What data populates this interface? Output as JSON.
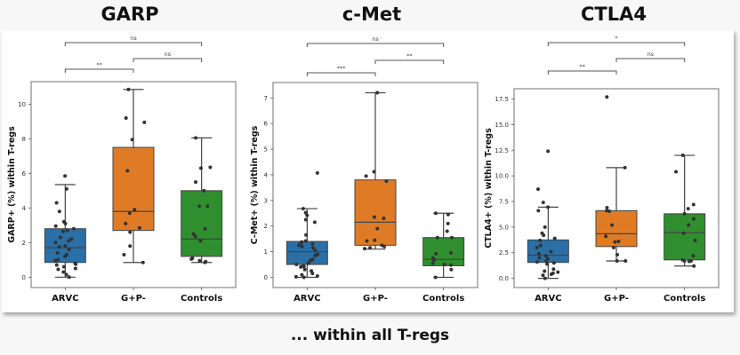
{
  "footer": "... within all T-regs",
  "chart_data": [
    {
      "type": "box",
      "title": "GARP",
      "xlabel": "",
      "ylabel": "GARP+ (%) within T-regs",
      "categories": [
        "ARVC",
        "G+P-",
        "Controls"
      ],
      "colors": [
        "#2a6fa6",
        "#e07b25",
        "#2f8f2f"
      ],
      "ylim": [
        -0.6,
        11.3
      ],
      "yticks": [
        0,
        2,
        4,
        6,
        8,
        10
      ],
      "ytick_labels": [
        "0",
        "2",
        "4",
        "6",
        "8",
        "10"
      ],
      "boxes": [
        {
          "whislo": 0.0,
          "q1": 0.85,
          "med": 1.7,
          "q3": 2.8,
          "whishi": 5.35
        },
        {
          "whislo": 0.85,
          "q1": 2.7,
          "med": 3.8,
          "q3": 7.5,
          "whishi": 10.85
        },
        {
          "whislo": 0.85,
          "q1": 1.2,
          "med": 2.2,
          "q3": 5.0,
          "whishi": 8.05
        }
      ],
      "points": [
        [
          5.85,
          5.1,
          4.3,
          3.8,
          3.2,
          3.1,
          2.95,
          2.8,
          2.7,
          2.65,
          2.3,
          2.2,
          2.1,
          2.0,
          1.8,
          1.75,
          1.6,
          1.4,
          1.3,
          1.2,
          1.0,
          0.95,
          0.8,
          0.75,
          0.7,
          0.6,
          0.5,
          0.45,
          0.3,
          0.15,
          0.0
        ],
        [
          10.85,
          9.2,
          8.95,
          7.95,
          6.15,
          3.9,
          3.7,
          3.1,
          2.85,
          2.6,
          1.8,
          1.3,
          0.85
        ],
        [
          8.05,
          6.35,
          6.3,
          5.5,
          5.0,
          4.1,
          4.1,
          2.8,
          2.5,
          2.35,
          2.1,
          1.1,
          1.05,
          0.95,
          0.9,
          0.85
        ]
      ],
      "significance": [
        {
          "pair": [
            "ARVC",
            "G+P-"
          ],
          "label": "**"
        },
        {
          "pair": [
            "G+P-",
            "Controls"
          ],
          "label": "ns"
        },
        {
          "pair": [
            "ARVC",
            "Controls"
          ],
          "label": "ns"
        }
      ]
    },
    {
      "type": "box",
      "title": "c-Met",
      "xlabel": "",
      "ylabel": "C-Met+ (%) within T-regs",
      "categories": [
        "ARVC",
        "G+P-",
        "Controls"
      ],
      "colors": [
        "#2a6fa6",
        "#e07b25",
        "#2f8f2f"
      ],
      "ylim": [
        -0.4,
        7.6
      ],
      "yticks": [
        0,
        1,
        2,
        3,
        4,
        5,
        6,
        7
      ],
      "ytick_labels": [
        "0",
        "1",
        "2",
        "3",
        "4",
        "5",
        "6",
        "7"
      ],
      "boxes": [
        {
          "whislo": 0.0,
          "q1": 0.5,
          "med": 1.0,
          "q3": 1.4,
          "whishi": 2.68
        },
        {
          "whislo": 1.1,
          "q1": 1.25,
          "med": 2.15,
          "q3": 3.8,
          "whishi": 7.2
        },
        {
          "whislo": 0.0,
          "q1": 0.45,
          "med": 0.7,
          "q3": 1.55,
          "whishi": 2.5
        }
      ],
      "points": [
        [
          4.07,
          2.68,
          2.52,
          2.42,
          2.25,
          2.15,
          1.65,
          1.42,
          1.38,
          1.35,
          1.3,
          1.25,
          1.2,
          1.15,
          1.05,
          0.9,
          0.88,
          0.85,
          0.7,
          0.65,
          0.55,
          0.5,
          0.45,
          0.42,
          0.4,
          0.3,
          0.25,
          0.15,
          0.1,
          0.05,
          0.02,
          0.0
        ],
        [
          7.2,
          4.12,
          3.95,
          3.75,
          2.35,
          2.3,
          1.9,
          1.45,
          1.42,
          1.25,
          1.2,
          1.15,
          1.12
        ],
        [
          2.5,
          2.45,
          2.1,
          1.8,
          1.55,
          1.55,
          0.95,
          0.92,
          0.75,
          0.68,
          0.55,
          0.5,
          0.48,
          0.3,
          0.0
        ]
      ],
      "significance": [
        {
          "pair": [
            "ARVC",
            "G+P-"
          ],
          "label": "***"
        },
        {
          "pair": [
            "G+P-",
            "Controls"
          ],
          "label": "**"
        },
        {
          "pair": [
            "ARVC",
            "Controls"
          ],
          "label": "ns"
        }
      ]
    },
    {
      "type": "box",
      "title": "CTLA4",
      "xlabel": "",
      "ylabel": "CTLA4+ (%) within T-regs",
      "categories": [
        "ARVC",
        "G+P-",
        "Controls"
      ],
      "colors": [
        "#2a6fa6",
        "#e07b25",
        "#2f8f2f"
      ],
      "ylim": [
        -0.9,
        18.5
      ],
      "yticks": [
        0,
        2.5,
        5,
        7.5,
        10,
        12.5,
        15,
        17.5
      ],
      "ytick_labels": [
        "0.0",
        "2.5",
        "5.0",
        "7.5",
        "10.0",
        "12.5",
        "15.0",
        "17.5"
      ],
      "boxes": [
        {
          "whislo": 0.0,
          "q1": 1.55,
          "med": 2.25,
          "q3": 3.75,
          "whishi": 6.95
        },
        {
          "whislo": 1.7,
          "q1": 3.1,
          "med": 4.35,
          "q3": 6.6,
          "whishi": 10.8
        },
        {
          "whislo": 1.2,
          "q1": 1.8,
          "med": 4.45,
          "q3": 6.3,
          "whishi": 12.0
        }
      ],
      "points": [
        [
          12.4,
          8.7,
          7.4,
          6.95,
          6.6,
          5.0,
          4.4,
          4.2,
          3.9,
          3.7,
          3.2,
          3.0,
          2.6,
          2.4,
          2.2,
          2.0,
          1.9,
          1.7,
          1.6,
          1.5,
          1.4,
          0.9,
          0.7,
          0.6,
          0.5,
          0.4,
          0.3,
          0.0
        ],
        [
          17.7,
          10.8,
          6.9,
          6.6,
          6.55,
          5.2,
          4.1,
          3.6,
          3.55,
          3.0,
          2.3,
          1.7,
          1.7
        ],
        [
          12.0,
          10.4,
          7.2,
          6.8,
          6.3,
          5.8,
          5.2,
          4.4,
          3.7,
          2.2,
          1.8,
          1.7,
          1.65,
          1.7,
          1.2
        ]
      ],
      "significance": [
        {
          "pair": [
            "ARVC",
            "G+P-"
          ],
          "label": "**"
        },
        {
          "pair": [
            "G+P-",
            "Controls"
          ],
          "label": "ns"
        },
        {
          "pair": [
            "ARVC",
            "Controls"
          ],
          "label": "*"
        }
      ]
    }
  ]
}
